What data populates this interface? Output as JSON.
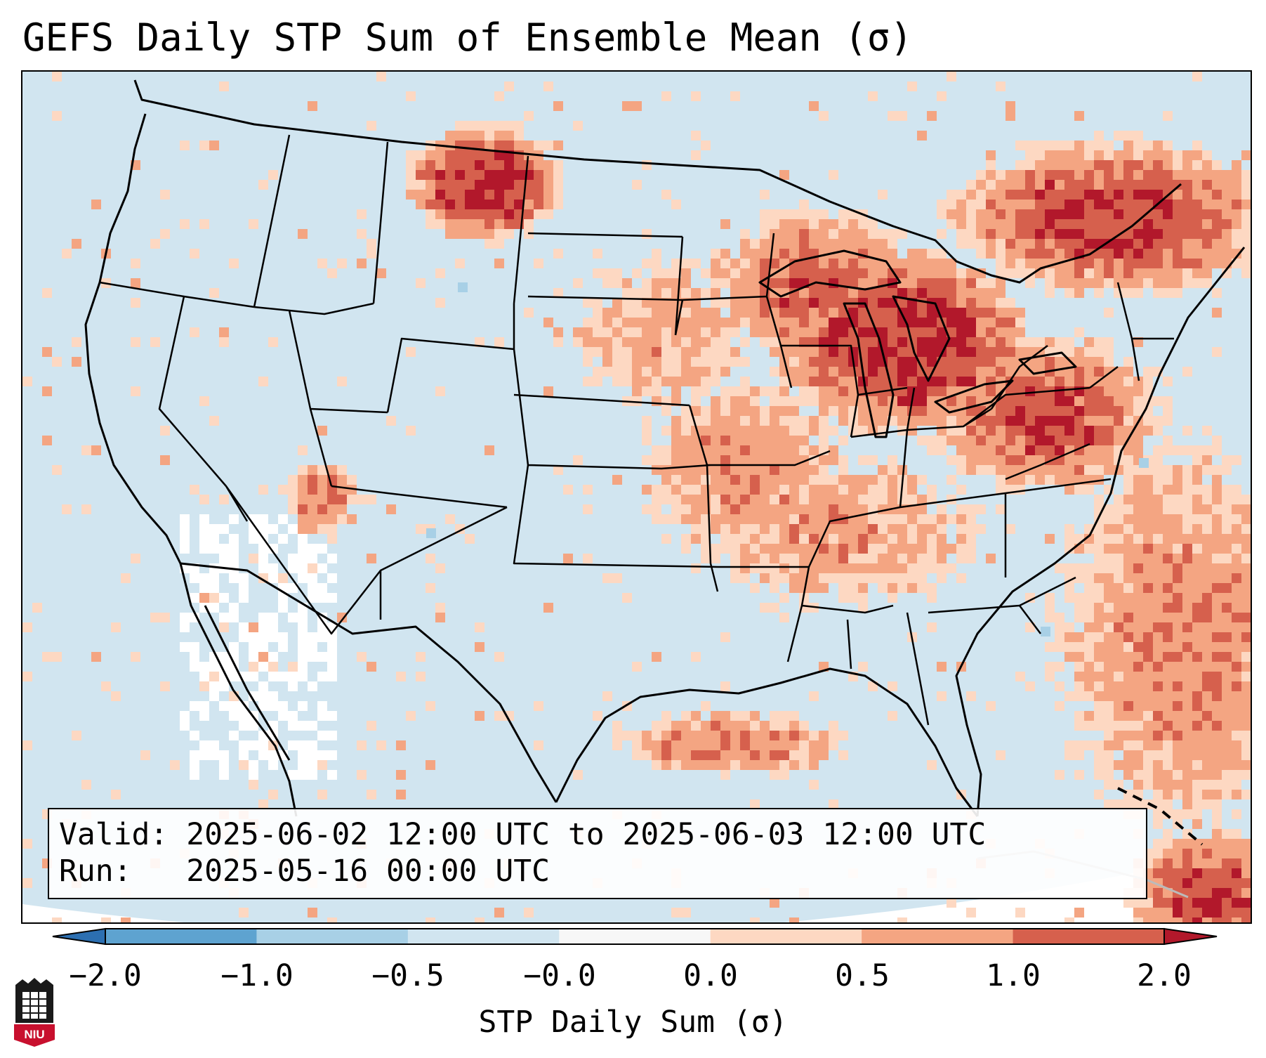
{
  "title": "GEFS Daily STP Sum of Ensemble Mean (σ)",
  "info": {
    "valid_line": "Valid: 2025-06-02 12:00 UTC to 2025-06-03 12:00 UTC",
    "run_line": "Run:   2025-05-16 00:00 UTC"
  },
  "colorbar": {
    "label": "STP Daily Sum (σ)",
    "ticks": [
      "−2.0",
      "−1.0",
      "−0.5",
      "−0.0",
      "0.0",
      "0.5",
      "1.0",
      "2.0"
    ],
    "colors": [
      "#2c6fb1",
      "#5ea3d0",
      "#a8d0e6",
      "#d1e5f0",
      "#f7f7f7",
      "#fdd8c2",
      "#f4a582",
      "#d6604d",
      "#b2182b"
    ]
  },
  "logo": {
    "text": "NIU"
  },
  "map": {
    "region": "Continental United States",
    "base_color": "#d1e5f0",
    "features": [
      "state borders",
      "country borders",
      "coastlines",
      "Great Lakes"
    ]
  }
}
